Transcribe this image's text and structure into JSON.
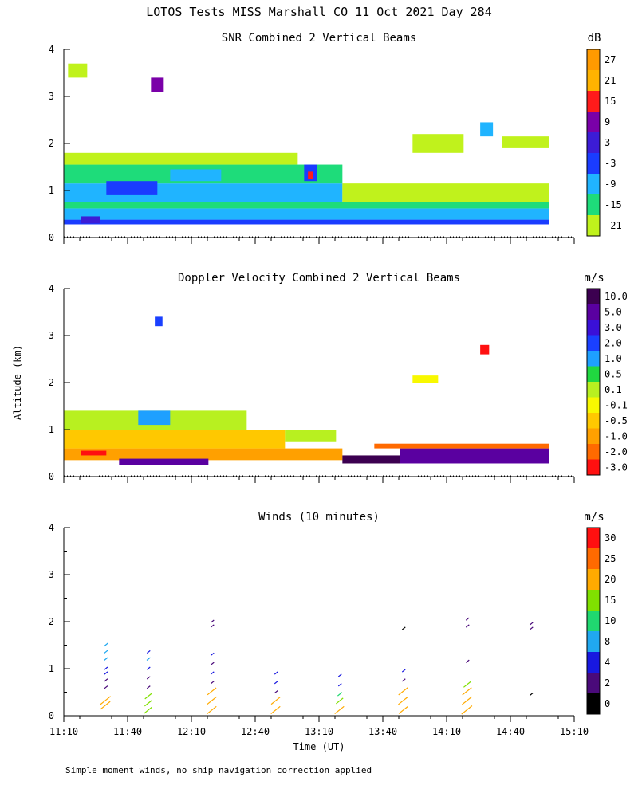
{
  "figure": {
    "title": "LOTOS Tests MISS Marshall CO  11 Oct 2021 Day 284",
    "ylabel": "Altitude (km)",
    "xlabel": "Time (UT)",
    "footnote": "Simple moment winds, no ship navigation correction applied"
  },
  "chart_data": [
    {
      "type": "heatmap",
      "title": "SNR Combined 2 Vertical Beams",
      "colorbar_unit": "dB",
      "colorbar_labels": [
        "27",
        "21",
        "15",
        "9",
        "3",
        "-3",
        "-9",
        "-15",
        "-21"
      ],
      "colorbar_colors": [
        "#ff9a00",
        "#ffb300",
        "#ff1b1b",
        "#7a00a8",
        "#3c1cd6",
        "#1a3cff",
        "#20b4ff",
        "#1edc7a",
        "#c0f21c"
      ],
      "ylim": [
        0,
        4
      ],
      "yticks": [
        "0",
        "1",
        "2",
        "3",
        "4"
      ],
      "xlim": [
        "11:10",
        "15:10"
      ],
      "blobs": [
        {
          "t": [
            11.17,
            14.97
          ],
          "h": [
            0.28,
            0.38
          ],
          "c": "#1a3cff"
        },
        {
          "t": [
            11.17,
            14.97
          ],
          "h": [
            0.38,
            0.62
          ],
          "c": "#20b4ff"
        },
        {
          "t": [
            11.17,
            14.97
          ],
          "h": [
            0.62,
            0.75
          ],
          "c": "#1edc7a"
        },
        {
          "t": [
            11.17,
            13.35
          ],
          "h": [
            0.75,
            1.15
          ],
          "c": "#20b4ff"
        },
        {
          "t": [
            11.17,
            13.35
          ],
          "h": [
            1.15,
            1.55
          ],
          "c": "#1edc7a"
        },
        {
          "t": [
            11.17,
            13.0
          ],
          "h": [
            1.55,
            1.8
          ],
          "c": "#c0f21c"
        },
        {
          "t": [
            13.35,
            14.97
          ],
          "h": [
            0.75,
            1.15
          ],
          "c": "#c0f21c"
        },
        {
          "t": [
            11.3,
            11.45
          ],
          "h": [
            0.3,
            0.45
          ],
          "c": "#3c1cd6"
        },
        {
          "t": [
            11.5,
            11.9
          ],
          "h": [
            0.9,
            1.2
          ],
          "c": "#1a3cff"
        },
        {
          "t": [
            12.0,
            12.4
          ],
          "h": [
            1.2,
            1.45
          ],
          "c": "#20b4ff"
        },
        {
          "t": [
            13.05,
            13.15
          ],
          "h": [
            1.2,
            1.55
          ],
          "c": "#1a3cff"
        },
        {
          "t": [
            13.08,
            13.12
          ],
          "h": [
            1.25,
            1.4
          ],
          "c": "#ff1b1b"
        },
        {
          "t": [
            11.85,
            11.95
          ],
          "h": [
            3.1,
            3.4
          ],
          "c": "#7a00a8"
        },
        {
          "t": [
            14.43,
            14.53
          ],
          "h": [
            2.15,
            2.45
          ],
          "c": "#20b4ff"
        },
        {
          "t": [
            13.9,
            14.3
          ],
          "h": [
            1.8,
            2.2
          ],
          "c": "#c0f21c"
        },
        {
          "t": [
            14.6,
            14.97
          ],
          "h": [
            1.9,
            2.15
          ],
          "c": "#c0f21c"
        },
        {
          "t": [
            11.2,
            11.35
          ],
          "h": [
            3.4,
            3.7
          ],
          "c": "#c0f21c"
        }
      ]
    },
    {
      "type": "heatmap",
      "title": "Doppler Velocity Combined 2 Vertical Beams",
      "colorbar_unit": "m/s",
      "colorbar_labels": [
        "10.0",
        "5.0",
        "3.0",
        "2.0",
        "1.0",
        "0.5",
        "0.1",
        "-0.1",
        "-0.5",
        "-1.0",
        "-2.0",
        "-3.0"
      ],
      "colorbar_colors": [
        "#3c0050",
        "#5a00a0",
        "#3a10d8",
        "#1a40ff",
        "#1ea0ff",
        "#20d840",
        "#b8f020",
        "#f8f800",
        "#ffc800",
        "#ffa000",
        "#ff6a00",
        "#ff1010"
      ],
      "ylim": [
        0,
        4
      ],
      "yticks": [
        "0",
        "1",
        "2",
        "3",
        "4"
      ],
      "xlim": [
        "11:10",
        "15:10"
      ],
      "blobs": [
        {
          "t": [
            11.17,
            13.35
          ],
          "h": [
            0.35,
            0.6
          ],
          "c": "#ffa000"
        },
        {
          "t": [
            11.17,
            12.9
          ],
          "h": [
            0.6,
            1.0
          ],
          "c": "#ffc800"
        },
        {
          "t": [
            11.17,
            12.6
          ],
          "h": [
            1.0,
            1.4
          ],
          "c": "#b8f020"
        },
        {
          "t": [
            11.3,
            11.5
          ],
          "h": [
            0.45,
            0.55
          ],
          "c": "#ff1010"
        },
        {
          "t": [
            11.6,
            12.3
          ],
          "h": [
            0.25,
            0.38
          ],
          "c": "#5a00a0"
        },
        {
          "t": [
            13.8,
            14.97
          ],
          "h": [
            0.28,
            0.6
          ],
          "c": "#5a00a0"
        },
        {
          "t": [
            13.35,
            13.8
          ],
          "h": [
            0.28,
            0.45
          ],
          "c": "#3c0050"
        },
        {
          "t": [
            13.6,
            14.97
          ],
          "h": [
            0.6,
            0.7
          ],
          "c": "#ff6a00"
        },
        {
          "t": [
            12.9,
            13.3
          ],
          "h": [
            0.75,
            1.0
          ],
          "c": "#b8f020"
        },
        {
          "t": [
            11.88,
            11.94
          ],
          "h": [
            3.2,
            3.4
          ],
          "c": "#1a40ff"
        },
        {
          "t": [
            14.43,
            14.5
          ],
          "h": [
            2.6,
            2.8
          ],
          "c": "#ff1010"
        },
        {
          "t": [
            13.9,
            14.1
          ],
          "h": [
            2.0,
            2.15
          ],
          "c": "#f8f800"
        },
        {
          "t": [
            11.75,
            12.0
          ],
          "h": [
            1.1,
            1.4
          ],
          "c": "#1ea0ff"
        }
      ]
    },
    {
      "type": "scatter",
      "subtype": "wind-profile",
      "title": "Winds (10 minutes)",
      "colorbar_unit": "m/s",
      "colorbar_labels": [
        "30",
        "25",
        "20",
        "15",
        "10",
        "8",
        "4",
        "2",
        "0"
      ],
      "colorbar_colors": [
        "#ff1010",
        "#ff6a00",
        "#ffaa00",
        "#80e000",
        "#20d870",
        "#20a8f0",
        "#1818e0",
        "#4a0a7a",
        "#000000"
      ],
      "ylim": [
        0,
        4
      ],
      "yticks": [
        "0",
        "1",
        "2",
        "3",
        "4"
      ],
      "xlim": [
        "11:10",
        "15:10"
      ],
      "xticks": [
        "11:10",
        "11:40",
        "12:10",
        "12:40",
        "13:10",
        "13:40",
        "14:10",
        "14:40",
        "15:10"
      ],
      "profiles": [
        {
          "time": "11:30",
          "segments": [
            {
              "h": 0.2,
              "speed": 22
            },
            {
              "h": 0.3,
              "speed": 24
            },
            {
              "h": 0.6,
              "speed": 3
            },
            {
              "h": 0.75,
              "speed": 3
            },
            {
              "h": 0.9,
              "speed": 4
            },
            {
              "h": 1.0,
              "speed": 4
            },
            {
              "h": 1.2,
              "speed": 8
            },
            {
              "h": 1.35,
              "speed": 9
            },
            {
              "h": 1.5,
              "speed": 9
            }
          ]
        },
        {
          "time": "11:50",
          "segments": [
            {
              "h": 0.1,
              "speed": 18
            },
            {
              "h": 0.25,
              "speed": 16
            },
            {
              "h": 0.4,
              "speed": 15
            },
            {
              "h": 0.6,
              "speed": 2
            },
            {
              "h": 0.8,
              "speed": 3
            },
            {
              "h": 1.0,
              "speed": 4
            },
            {
              "h": 1.2,
              "speed": 8
            },
            {
              "h": 1.35,
              "speed": 4
            }
          ]
        },
        {
          "time": "12:20",
          "segments": [
            {
              "h": 0.1,
              "speed": 21
            },
            {
              "h": 0.3,
              "speed": 22
            },
            {
              "h": 0.5,
              "speed": 20
            },
            {
              "h": 0.7,
              "speed": 3
            },
            {
              "h": 0.9,
              "speed": 4
            },
            {
              "h": 1.1,
              "speed": 3
            },
            {
              "h": 1.3,
              "speed": 4
            },
            {
              "h": 1.9,
              "speed": 3
            },
            {
              "h": 2.0,
              "speed": 3
            }
          ]
        },
        {
          "time": "12:50",
          "segments": [
            {
              "h": 0.1,
              "speed": 21
            },
            {
              "h": 0.3,
              "speed": 20
            },
            {
              "h": 0.5,
              "speed": 3
            },
            {
              "h": 0.7,
              "speed": 4
            },
            {
              "h": 0.9,
              "speed": 4
            }
          ]
        },
        {
          "time": "13:20",
          "segments": [
            {
              "h": 0.1,
              "speed": 21
            },
            {
              "h": 0.3,
              "speed": 16
            },
            {
              "h": 0.45,
              "speed": 10
            },
            {
              "h": 0.65,
              "speed": 4
            },
            {
              "h": 0.85,
              "speed": 4
            }
          ]
        },
        {
          "time": "13:50",
          "segments": [
            {
              "h": 0.1,
              "speed": 20
            },
            {
              "h": 0.3,
              "speed": 22
            },
            {
              "h": 0.5,
              "speed": 21
            },
            {
              "h": 0.75,
              "speed": 3
            },
            {
              "h": 0.95,
              "speed": 4
            },
            {
              "h": 1.85,
              "speed": 1
            }
          ]
        },
        {
          "time": "14:20",
          "segments": [
            {
              "h": 0.1,
              "speed": 24
            },
            {
              "h": 0.3,
              "speed": 22
            },
            {
              "h": 0.5,
              "speed": 21
            },
            {
              "h": 0.65,
              "speed": 16
            },
            {
              "h": 1.15,
              "speed": 3
            },
            {
              "h": 1.9,
              "speed": 3
            },
            {
              "h": 2.05,
              "speed": 3
            }
          ]
        },
        {
          "time": "14:50",
          "segments": [
            {
              "h": 0.45,
              "speed": 1
            },
            {
              "h": 1.85,
              "speed": 3
            },
            {
              "h": 1.95,
              "speed": 3
            }
          ]
        }
      ]
    }
  ]
}
